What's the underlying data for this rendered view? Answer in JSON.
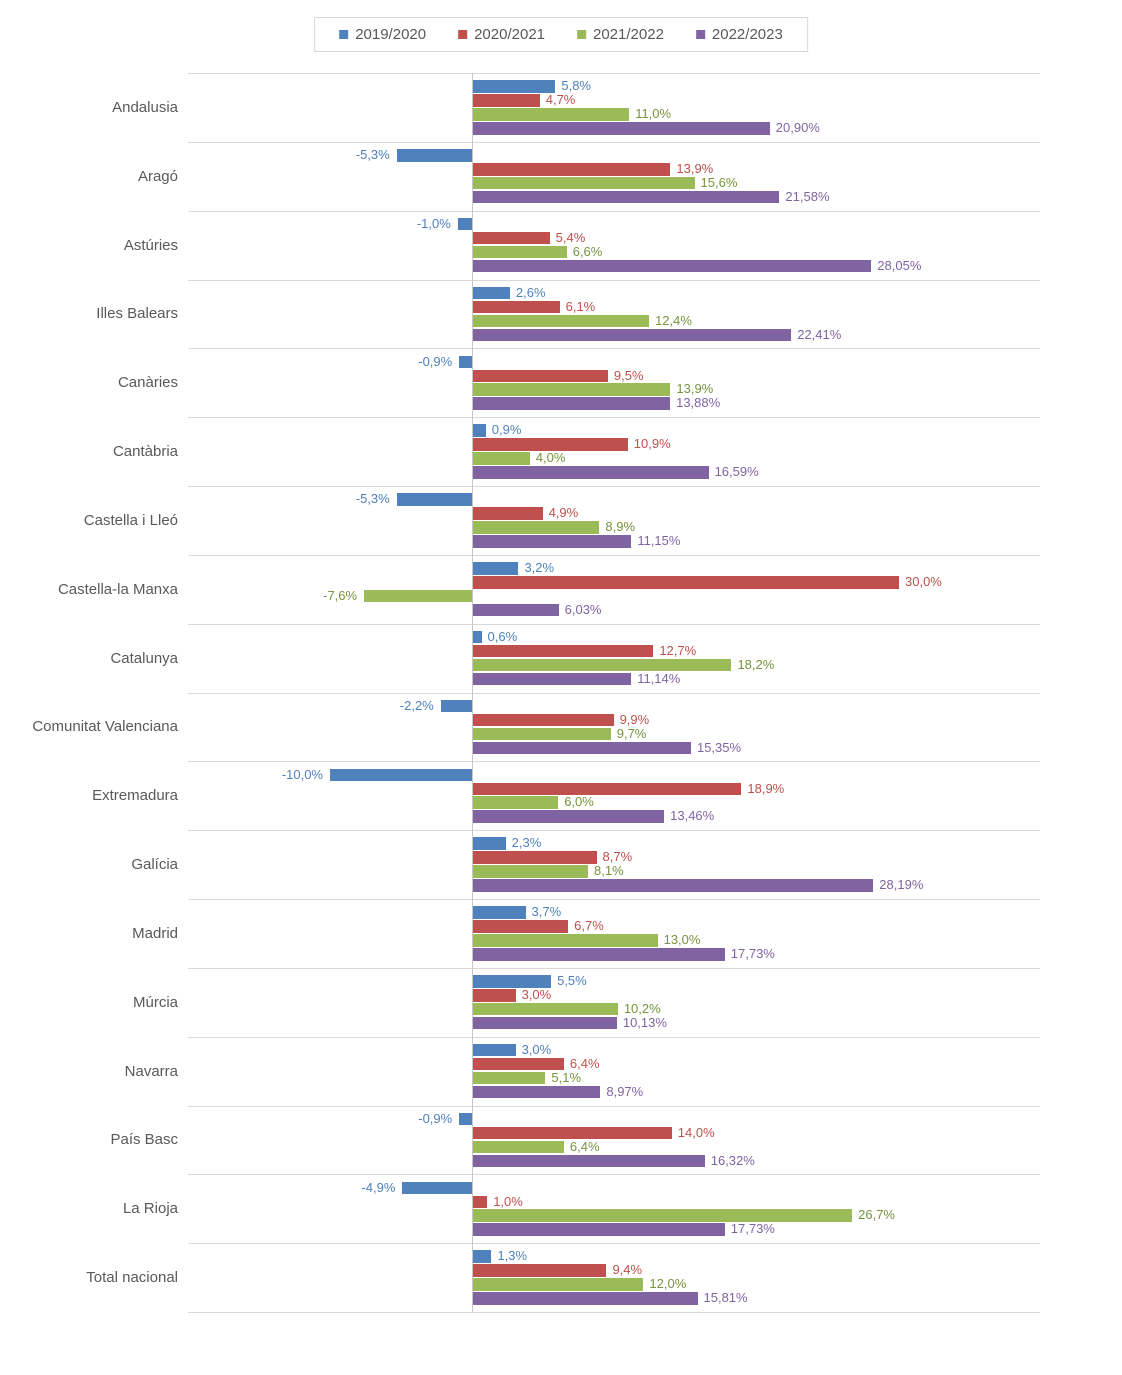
{
  "chart_data": {
    "type": "bar",
    "orientation": "horizontal",
    "title": "",
    "xlabel": "",
    "ylabel": "",
    "xlim": [
      -20,
      40
    ],
    "grid": "category-separator-lines-and-zero-axis",
    "legend_position": "top-center",
    "value_suffix": "%",
    "categories": [
      "Andalusia",
      "Aragó",
      "Astúries",
      "Illes Balears",
      "Canàries",
      "Cantàbria",
      "Castella i Lleó",
      "Castella-la Manxa",
      "Catalunya",
      "Comunitat Valenciana",
      "Extremadura",
      "Galícia",
      "Madrid",
      "Múrcia",
      "Navarra",
      "País Basc",
      "La Rioja",
      "Total nacional"
    ],
    "series": [
      {
        "name": "2019/2020",
        "color": "#4F81BD",
        "label_color": "#4F81BD",
        "values": [
          5.8,
          -5.3,
          -1.0,
          2.6,
          -0.9,
          0.9,
          -5.3,
          3.2,
          0.6,
          -2.2,
          -10.0,
          2.3,
          3.7,
          5.5,
          3.0,
          -0.9,
          -4.9,
          1.3
        ],
        "labels": [
          "5,8%",
          "-5,3%",
          "-1,0%",
          "2,6%",
          "-0,9%",
          "0,9%",
          "-5,3%",
          "3,2%",
          "0,6%",
          "-2,2%",
          "-10,0%",
          "2,3%",
          "3,7%",
          "5,5%",
          "3,0%",
          "-0,9%",
          "-4,9%",
          "1,3%"
        ]
      },
      {
        "name": "2020/2021",
        "color": "#C0504D",
        "label_color": "#C0504D",
        "values": [
          4.7,
          13.9,
          5.4,
          6.1,
          9.5,
          10.9,
          4.9,
          30.0,
          12.7,
          9.9,
          18.9,
          8.7,
          6.7,
          3.0,
          6.4,
          14.0,
          1.0,
          9.4
        ],
        "labels": [
          "4,7%",
          "13,9%",
          "5,4%",
          "6,1%",
          "9,5%",
          "10,9%",
          "4,9%",
          "30,0%",
          "12,7%",
          "9,9%",
          "18,9%",
          "8,7%",
          "6,7%",
          "3,0%",
          "6,4%",
          "14,0%",
          "1,0%",
          "9,4%"
        ]
      },
      {
        "name": "2021/2022",
        "color": "#9BBB59",
        "label_color": "#77933C",
        "values": [
          11.0,
          15.6,
          6.6,
          12.4,
          13.9,
          4.0,
          8.9,
          -7.6,
          18.2,
          9.7,
          6.0,
          8.1,
          13.0,
          10.2,
          5.1,
          6.4,
          26.7,
          12.0
        ],
        "labels": [
          "11,0%",
          "15,6%",
          "6,6%",
          "12,4%",
          "13,9%",
          "4,0%",
          "8,9%",
          "-7,6%",
          "18,2%",
          "9,7%",
          "6,0%",
          "8,1%",
          "13,0%",
          "10,2%",
          "5,1%",
          "6,4%",
          "26,7%",
          "12,0%"
        ]
      },
      {
        "name": "2022/2023",
        "color": "#8064A2",
        "label_color": "#8064A2",
        "values": [
          20.9,
          21.58,
          28.05,
          22.41,
          13.88,
          16.59,
          11.15,
          6.03,
          11.14,
          15.35,
          13.46,
          28.19,
          17.73,
          10.13,
          8.97,
          16.32,
          17.73,
          15.81
        ],
        "labels": [
          "20,90%",
          "21,58%",
          "28,05%",
          "22,41%",
          "13,88%",
          "16,59%",
          "11,15%",
          "6,03%",
          "11,14%",
          "15,35%",
          "13,46%",
          "28,19%",
          "17,73%",
          "10,13%",
          "8,97%",
          "16,32%",
          "17,73%",
          "15,81%"
        ]
      }
    ],
    "colors": {
      "separator_line": "#d9d9d9",
      "zero_axis_line": "#c6c6c6",
      "category_label_text": "#595959",
      "legend_text": "#595959",
      "legend_border": "#d6d6d6",
      "background": "#ffffff"
    }
  }
}
